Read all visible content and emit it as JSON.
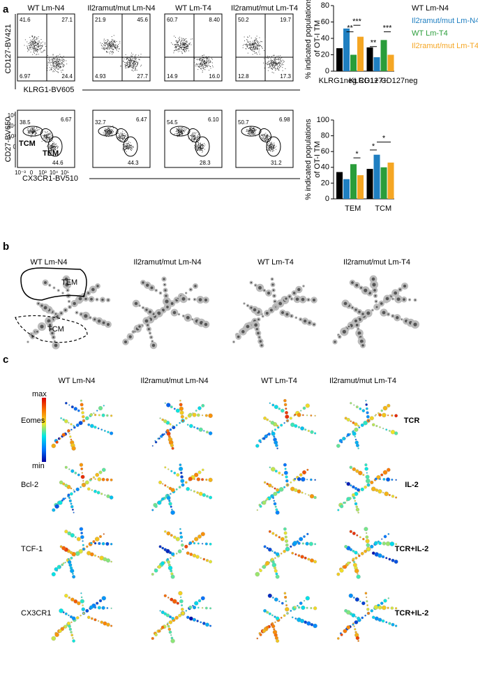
{
  "panel_a": {
    "label": "a",
    "titles": [
      "WT Lm-N4",
      "Il2ramut/mut Lm-N4",
      "WT Lm-T4",
      "Il2ramut/mut Lm-T4"
    ],
    "row1_ylabel": "CD127-BV421",
    "row1_xlabel": "KLRG1-BV605",
    "row2_ylabel": "CD27-BV650",
    "row2_xlabel": "CX3CR1-BV510",
    "quadrants": [
      [
        "41.6",
        "27.1",
        "6.97",
        "24.4"
      ],
      [
        "21.9",
        "45.6",
        "4.93",
        "27.7"
      ],
      [
        "60.7",
        "8.40",
        "14.9",
        "16.0"
      ],
      [
        "50.2",
        "19.7",
        "12.8",
        "17.3"
      ]
    ],
    "gates": [
      [
        "38.5",
        "6.67",
        "44.6"
      ],
      [
        "32.7",
        "6.47",
        "44.3"
      ],
      [
        "54.5",
        "6.10",
        "28.3"
      ],
      [
        "50.7",
        "6.98",
        "31.2"
      ]
    ],
    "gate_names": [
      "TCM",
      "TEM"
    ],
    "row2_yticks": [
      "10⁵",
      "10⁴",
      "10³",
      "0"
    ],
    "row2_xticks": [
      "10⁻³",
      "0",
      "10³",
      "10⁴",
      "10⁵"
    ]
  },
  "chart_data": [
    {
      "type": "bar",
      "ylabel": [
        "% indicated populations",
        "of OT-I TM"
      ],
      "categories": [
        "KLRG1neg CD127+",
        "KLRG1+ CD127neg"
      ],
      "ylim": [
        0,
        80
      ],
      "yticks": [
        0,
        20,
        40,
        60,
        80
      ],
      "legend": "right",
      "series": [
        {
          "name": "WT Lm-N4",
          "color": "#000000",
          "values": [
            28,
            29
          ]
        },
        {
          "name": "Il2ramut/mut Lm-N4",
          "color": "#1f7fc1",
          "values": [
            52,
            17
          ]
        },
        {
          "name": "WT Lm-T4",
          "color": "#2a9d3a",
          "values": [
            20,
            38
          ]
        },
        {
          "name": "Il2ramut/mut Lm-T4",
          "color": "#f5a623",
          "values": [
            42,
            20
          ]
        }
      ],
      "annotations": [
        "**",
        "***",
        "**",
        "***"
      ]
    },
    {
      "type": "bar",
      "ylabel": [
        "% indicated populations",
        "of OT-I TM"
      ],
      "categories": [
        "TEM",
        "TCM"
      ],
      "ylim": [
        0,
        100
      ],
      "yticks": [
        0,
        20,
        40,
        60,
        80,
        100
      ],
      "series": [
        {
          "name": "WT Lm-N4",
          "color": "#000000",
          "values": [
            34,
            38
          ]
        },
        {
          "name": "Il2ramut/mut Lm-N4",
          "color": "#1f7fc1",
          "values": [
            25,
            56
          ]
        },
        {
          "name": "WT Lm-T4",
          "color": "#2a9d3a",
          "values": [
            44,
            40
          ]
        },
        {
          "name": "Il2ramut/mut Lm-T4",
          "color": "#f5a623",
          "values": [
            30,
            46
          ]
        }
      ],
      "annotations": [
        "*",
        "*",
        "*"
      ]
    }
  ],
  "panel_b": {
    "label": "b",
    "titles": [
      "WT Lm-N4",
      "Il2ramut/mut Lm-N4",
      "WT Lm-T4",
      "Il2ramut/mut Lm-T4"
    ],
    "regions": [
      "TEM",
      "TCM"
    ]
  },
  "panel_c": {
    "label": "c",
    "titles": [
      "WT Lm-N4",
      "Il2ramut/mut Lm-N4",
      "WT Lm-T4",
      "Il2ramut/mut Lm-T4"
    ],
    "rows": [
      "Eomes",
      "Bcl-2",
      "TCF-1",
      "CX3CR1"
    ],
    "conditions": [
      "TCR",
      "IL-2",
      "TCR+IL-2",
      "TCR+IL-2"
    ],
    "scale": [
      "max",
      "min"
    ]
  }
}
